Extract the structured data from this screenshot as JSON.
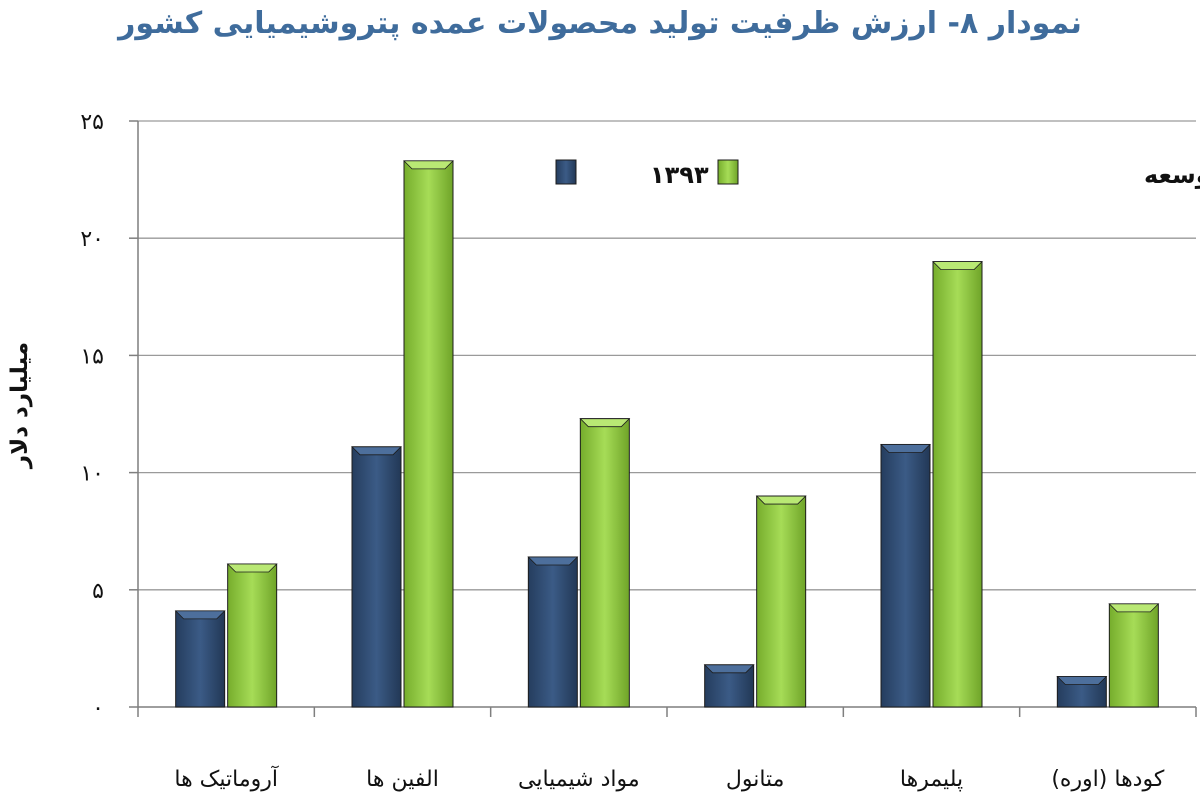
{
  "chart_data": {
    "type": "bar",
    "title": "نمودار ۸- ارزش ظرفیت تولید محصولات عمده پتروشیمیایی کشور",
    "xlabel": "",
    "ylabel": "میلیارد دلار",
    "ylim": [
      0,
      25
    ],
    "yticks": [
      0,
      5,
      10,
      15,
      20,
      25
    ],
    "ytick_labels": [
      "۰",
      "۵",
      "۱۰",
      "۱۵",
      "۲۰",
      "۲۵"
    ],
    "grid": true,
    "legend_position": "top-right",
    "categories": [
      "آروماتیک ها",
      "الفین ها",
      "مواد شیمیایی",
      "متانول",
      "پلیمرها",
      "کودها (اوره)"
    ],
    "series": [
      {
        "name": "۱۳۹۳",
        "color": "#2e4a70",
        "values": [
          4.1,
          11.1,
          6.4,
          1.8,
          11.2,
          1.3
        ]
      },
      {
        "name": "تکمیل طرحهای برنامه پنجم توسعه",
        "color": "#8ec63f",
        "values": [
          6.1,
          23.3,
          12.3,
          9.0,
          19.0,
          4.4
        ]
      }
    ]
  }
}
